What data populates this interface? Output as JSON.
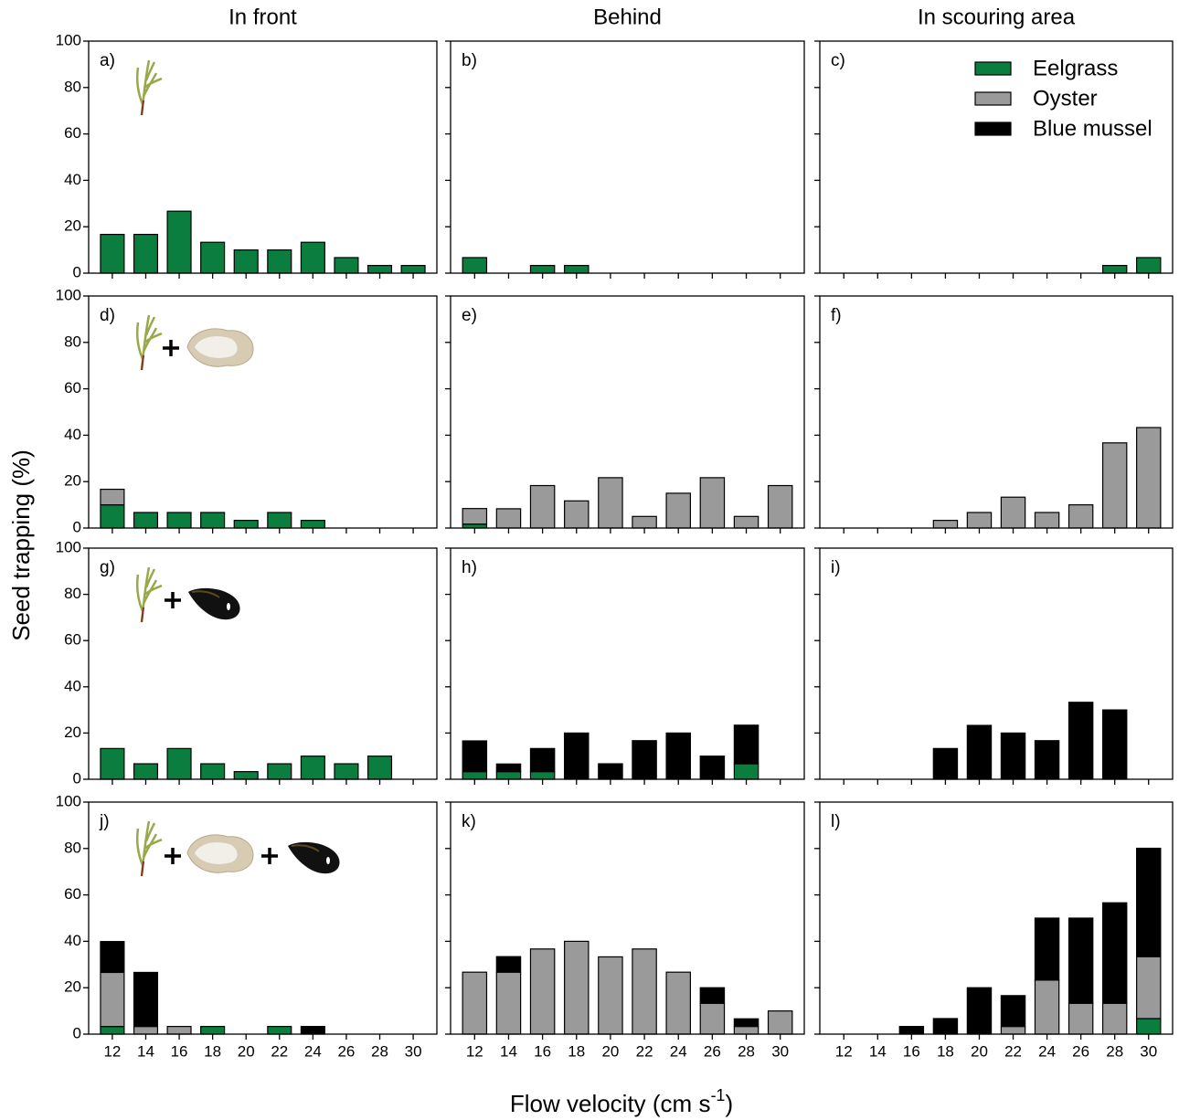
{
  "chart_data": {
    "type": "bar",
    "stacked": true,
    "column_titles": [
      "In front",
      "Behind",
      "In scouring area"
    ],
    "ylabel": "Seed trapping (%)",
    "xlabel": {
      "text": "Flow velocity (cm s",
      "sup": "-1",
      "end": ")"
    },
    "categories": [
      "12",
      "14",
      "16",
      "18",
      "20",
      "22",
      "24",
      "26",
      "28",
      "30"
    ],
    "ylim": [
      0,
      100
    ],
    "yticks": [
      0,
      20,
      40,
      60,
      80,
      100
    ],
    "legend": "upper right",
    "series": [
      {
        "name": "Eelgrass",
        "color": "#0b7d3e"
      },
      {
        "name": "Oyster",
        "color": "#9a9a9a"
      },
      {
        "name": "Blue mussel",
        "color": "#000000"
      }
    ],
    "panels": [
      {
        "label": "a)",
        "values": [
          [
            16.7,
            16.7,
            26.7,
            13.3,
            10,
            10,
            13.3,
            6.7,
            3.3,
            3.3
          ],
          [
            0,
            0,
            0,
            0,
            0,
            0,
            0,
            0,
            0,
            0
          ],
          [
            0,
            0,
            0,
            0,
            0,
            0,
            0,
            0,
            0,
            0
          ]
        ]
      },
      {
        "label": "b)",
        "values": [
          [
            6.7,
            0,
            3.3,
            3.3,
            0,
            0,
            0,
            0,
            0,
            0
          ],
          [
            0,
            0,
            0,
            0,
            0,
            0,
            0,
            0,
            0,
            0
          ],
          [
            0,
            0,
            0,
            0,
            0,
            0,
            0,
            0,
            0,
            0
          ]
        ]
      },
      {
        "label": "c)",
        "values": [
          [
            0,
            0,
            0,
            0,
            0,
            0,
            0,
            0,
            3.3,
            6.7
          ],
          [
            0,
            0,
            0,
            0,
            0,
            0,
            0,
            0,
            0,
            0
          ],
          [
            0,
            0,
            0,
            0,
            0,
            0,
            0,
            0,
            0,
            0
          ]
        ]
      },
      {
        "label": "d)",
        "values": [
          [
            10,
            6.7,
            6.7,
            6.7,
            3.3,
            6.7,
            3.3,
            0,
            0,
            0
          ],
          [
            6.7,
            0,
            0,
            0,
            0,
            0,
            0,
            0,
            0,
            0
          ],
          [
            0,
            0,
            0,
            0,
            0,
            0,
            0,
            0,
            0,
            0
          ]
        ]
      },
      {
        "label": "e)",
        "values": [
          [
            1.7,
            0,
            0,
            0,
            0,
            0,
            0,
            0,
            0,
            0
          ],
          [
            6.7,
            8.3,
            18.3,
            11.7,
            21.7,
            5,
            15,
            21.7,
            5,
            18.3
          ],
          [
            0,
            0,
            0,
            0,
            0,
            0,
            0,
            0,
            0,
            0
          ]
        ]
      },
      {
        "label": "f)",
        "values": [
          [
            0,
            0,
            0,
            0,
            0,
            0,
            0,
            0,
            0,
            0
          ],
          [
            0,
            0,
            0,
            3.3,
            6.7,
            13.3,
            6.7,
            10,
            36.7,
            43.3
          ],
          [
            0,
            0,
            0,
            0,
            0,
            0,
            0,
            0,
            0,
            0
          ]
        ]
      },
      {
        "label": "g)",
        "values": [
          [
            13.3,
            6.7,
            13.3,
            6.7,
            3.3,
            6.7,
            10,
            6.7,
            10,
            0
          ],
          [
            0,
            0,
            0,
            0,
            0,
            0,
            0,
            0,
            0,
            0
          ],
          [
            0,
            0,
            0,
            0,
            0,
            0,
            0,
            0,
            0,
            0
          ]
        ]
      },
      {
        "label": "h)",
        "values": [
          [
            3.3,
            3.3,
            3.3,
            0,
            0,
            0,
            0,
            0,
            6.7,
            0
          ],
          [
            0,
            0,
            0,
            0,
            0,
            0,
            0,
            0,
            0,
            0
          ],
          [
            13.3,
            3.3,
            10,
            20,
            6.7,
            16.7,
            20,
            10,
            16.7,
            0
          ]
        ]
      },
      {
        "label": "i)",
        "values": [
          [
            0,
            0,
            0,
            0,
            0,
            0,
            0,
            0,
            0,
            0
          ],
          [
            0,
            0,
            0,
            0,
            0,
            0,
            0,
            0,
            0,
            0
          ],
          [
            0,
            0,
            0,
            13.3,
            23.3,
            20,
            16.7,
            33.3,
            30,
            0
          ]
        ]
      },
      {
        "label": "j)",
        "values": [
          [
            3.3,
            0,
            0,
            3.3,
            0,
            3.3,
            0,
            0,
            0,
            0
          ],
          [
            23.3,
            3.3,
            3.3,
            0,
            0,
            0,
            0,
            0,
            0,
            0
          ],
          [
            13.3,
            23.3,
            0,
            0,
            0,
            0,
            3.3,
            0,
            0,
            0
          ]
        ]
      },
      {
        "label": "k)",
        "values": [
          [
            0,
            0,
            0,
            0,
            0,
            0,
            0,
            0,
            0,
            0
          ],
          [
            26.7,
            26.7,
            36.7,
            40,
            33.3,
            36.7,
            26.7,
            13.3,
            3.3,
            10
          ],
          [
            0,
            6.7,
            0,
            0,
            0,
            0,
            0,
            6.7,
            3.3,
            0
          ]
        ]
      },
      {
        "label": "l)",
        "values": [
          [
            0,
            0,
            0,
            0,
            0,
            0,
            0,
            0,
            0,
            6.7
          ],
          [
            0,
            0,
            0,
            0,
            0,
            3.3,
            23.3,
            13.3,
            13.3,
            26.7
          ],
          [
            0,
            0,
            3.3,
            6.7,
            20,
            13.3,
            26.7,
            36.7,
            43.3,
            46.7
          ]
        ]
      }
    ]
  }
}
